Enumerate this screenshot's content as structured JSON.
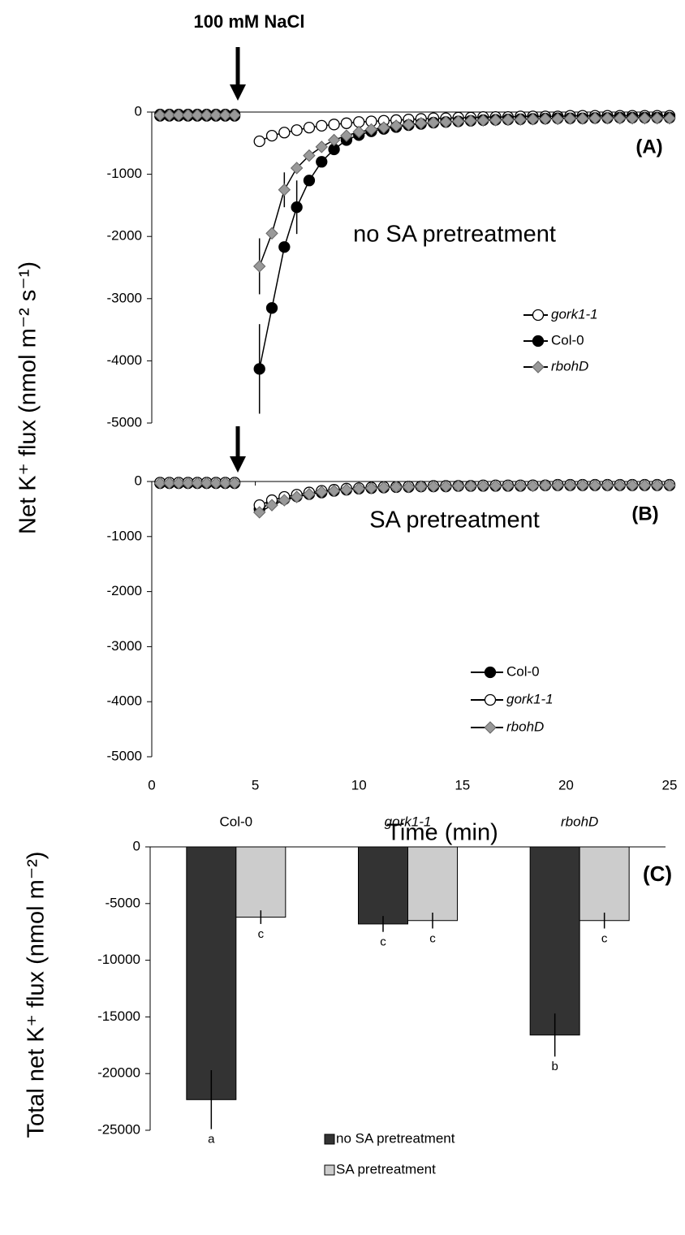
{
  "chart_data": [
    {
      "type": "line",
      "ylabel": "Net K⁺ flux (nmol m⁻² s⁻¹)",
      "annotations": [
        "100 mM NaCl",
        "(A)",
        "no SA pretreatment"
      ],
      "legend": "center right",
      "xlim": [
        0,
        25
      ],
      "ylim": [
        -5000,
        0
      ],
      "yticks": [
        0,
        -1000,
        -2000,
        -3000,
        -4000,
        -5000
      ],
      "x": [
        0.4,
        0.85,
        1.3,
        1.75,
        2.2,
        2.65,
        3.1,
        3.55,
        4.0,
        4.6,
        5.2,
        5.8,
        6.4,
        7.0,
        7.6,
        8.2,
        8.8,
        9.4,
        10.0,
        10.6,
        11.2,
        11.8,
        12.4,
        13.0,
        13.6,
        14.2,
        14.8,
        15.4,
        16.0,
        16.6,
        17.2,
        17.8,
        18.4,
        19.0,
        19.6,
        20.2,
        20.8,
        21.4,
        22.0,
        22.6,
        23.2,
        23.8,
        24.4,
        25.0
      ],
      "series": [
        {
          "name": "gork1-1",
          "italic": true,
          "marker": "circle",
          "color": "#ffffff",
          "values": [
            -40,
            -40,
            -40,
            -40,
            -40,
            -40,
            -40,
            -40,
            -40,
            null,
            -470,
            -380,
            -330,
            -290,
            -250,
            -220,
            -200,
            -180,
            -160,
            -150,
            -140,
            -130,
            -120,
            -110,
            -100,
            -100,
            -90,
            -90,
            -80,
            -80,
            -80,
            -70,
            -70,
            -70,
            -70,
            -60,
            -60,
            -60,
            -60,
            -60,
            -60,
            -60,
            -60,
            -60
          ]
        },
        {
          "name": "Col-0",
          "italic": false,
          "marker": "circle",
          "color": "#000000",
          "values": [
            -60,
            -60,
            -60,
            -60,
            -60,
            -60,
            -60,
            -60,
            -60,
            null,
            -4130,
            -3150,
            -2170,
            -1530,
            -1100,
            -800,
            -600,
            -450,
            -370,
            -310,
            -270,
            -240,
            -210,
            -190,
            -170,
            -160,
            -150,
            -140,
            -130,
            -125,
            -120,
            -115,
            -110,
            -105,
            -100,
            -100,
            -100,
            -95,
            -95,
            -90,
            -90,
            -90,
            -90,
            -90
          ],
          "errors": [
            null,
            null,
            null,
            null,
            null,
            null,
            null,
            null,
            null,
            null,
            720,
            null,
            null,
            430,
            null,
            null,
            null,
            null,
            null,
            null,
            null,
            null,
            null,
            null,
            null,
            null,
            null,
            null,
            null,
            null,
            null,
            null,
            null,
            null,
            null,
            null,
            null,
            null,
            null,
            null,
            null,
            null,
            null,
            null
          ]
        },
        {
          "name": "rbohD",
          "italic": true,
          "marker": "diamond",
          "color": "#999999",
          "values": [
            -50,
            -50,
            -50,
            -50,
            -50,
            -50,
            -50,
            -50,
            -50,
            null,
            -2480,
            -1950,
            -1250,
            -900,
            -700,
            -560,
            -450,
            -380,
            -320,
            -280,
            -250,
            -220,
            -200,
            -180,
            -170,
            -160,
            -150,
            -140,
            -135,
            -130,
            -125,
            -120,
            -115,
            -110,
            -110,
            -105,
            -105,
            -100,
            -100,
            -100,
            -100,
            -100,
            -100,
            -100
          ],
          "errors": [
            null,
            null,
            null,
            null,
            null,
            null,
            null,
            null,
            null,
            null,
            450,
            null,
            280,
            null,
            null,
            null,
            null,
            null,
            null,
            null,
            null,
            null,
            null,
            null,
            null,
            null,
            null,
            null,
            null,
            null,
            null,
            null,
            null,
            null,
            null,
            null,
            null,
            null,
            null,
            null,
            null,
            null,
            null,
            null
          ]
        }
      ]
    },
    {
      "type": "line",
      "xlabel": "Time (min)",
      "annotations": [
        "(B)",
        "SA pretreatment"
      ],
      "legend": "lower right",
      "xlim": [
        0,
        25
      ],
      "xticks": [
        0,
        5,
        10,
        15,
        20,
        25
      ],
      "ylim": [
        -5000,
        0
      ],
      "yticks": [
        0,
        -1000,
        -2000,
        -3000,
        -4000,
        -5000
      ],
      "x": [
        0.4,
        0.85,
        1.3,
        1.75,
        2.2,
        2.65,
        3.1,
        3.55,
        4.0,
        4.6,
        5.2,
        5.8,
        6.4,
        7.0,
        7.6,
        8.2,
        8.8,
        9.4,
        10.0,
        10.6,
        11.2,
        11.8,
        12.4,
        13.0,
        13.6,
        14.2,
        14.8,
        15.4,
        16.0,
        16.6,
        17.2,
        17.8,
        18.4,
        19.0,
        19.6,
        20.2,
        20.8,
        21.4,
        22.0,
        22.6,
        23.2,
        23.8,
        24.4,
        25.0
      ],
      "series": [
        {
          "name": "Col-0",
          "italic": false,
          "marker": "circle",
          "color": "#000000",
          "values": [
            -30,
            -30,
            -30,
            -30,
            -30,
            -30,
            -30,
            -30,
            -30,
            null,
            -500,
            -390,
            -320,
            -270,
            -230,
            -200,
            -170,
            -150,
            -130,
            -120,
            -110,
            -100,
            -100,
            -90,
            -90,
            -90,
            -80,
            -80,
            -80,
            -80,
            -80,
            -80,
            -70,
            -70,
            -70,
            -70,
            -70,
            -70,
            -70,
            -70,
            -70,
            -70,
            -70,
            -70
          ]
        },
        {
          "name": "gork1-1",
          "italic": true,
          "marker": "circle",
          "color": "#ffffff",
          "values": [
            -20,
            -20,
            -20,
            -20,
            -20,
            -20,
            -20,
            -20,
            -20,
            null,
            -430,
            -340,
            -280,
            -240,
            -200,
            -170,
            -150,
            -130,
            -120,
            -110,
            -100,
            -100,
            -90,
            -90,
            -80,
            -80,
            -80,
            -80,
            -70,
            -70,
            -70,
            -70,
            -70,
            -70,
            -60,
            -60,
            -60,
            -60,
            -60,
            -60,
            -60,
            -60,
            -60,
            -60
          ]
        },
        {
          "name": "rbohD",
          "italic": true,
          "marker": "diamond",
          "color": "#999999",
          "values": [
            -30,
            -30,
            -30,
            -30,
            -30,
            -30,
            -30,
            -30,
            -30,
            null,
            -560,
            -430,
            -340,
            -280,
            -230,
            -190,
            -170,
            -150,
            -130,
            -120,
            -110,
            -100,
            -100,
            -90,
            -90,
            -90,
            -80,
            -80,
            -80,
            -80,
            -80,
            -80,
            -80,
            -70,
            -70,
            -70,
            -70,
            -70,
            -70,
            -70,
            -70,
            -70,
            -70,
            -70
          ]
        }
      ]
    },
    {
      "type": "bar",
      "ylabel": "Total net K⁺ flux (nmol m⁻²)",
      "annotations": [
        "(C)"
      ],
      "legend": "lower center",
      "categories": [
        "Col-0",
        "gork1-1",
        "rbohD"
      ],
      "italic_categories": [
        false,
        true,
        true
      ],
      "ylim": [
        -25000,
        0
      ],
      "yticks": [
        0,
        -5000,
        -10000,
        -15000,
        -20000,
        -25000
      ],
      "series": [
        {
          "name": "no SA pretreatment",
          "color": "#333333",
          "values": [
            -22300,
            -6800,
            -16600
          ],
          "errors": [
            2600,
            700,
            1900
          ],
          "letters": [
            "a",
            "c",
            "b"
          ]
        },
        {
          "name": "SA pretreatment",
          "color": "#cccccc",
          "values": [
            -6200,
            -6500,
            -6500
          ],
          "errors": [
            600,
            700,
            700
          ],
          "letters": [
            "c",
            "c",
            "c"
          ]
        }
      ]
    }
  ]
}
